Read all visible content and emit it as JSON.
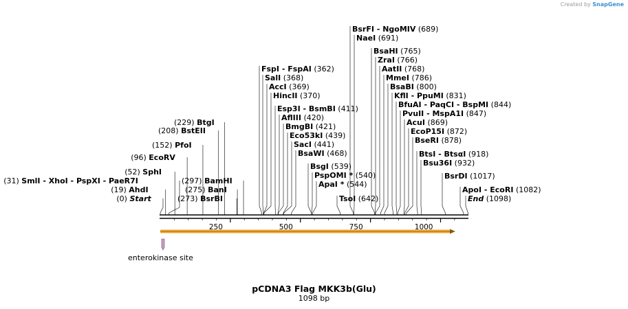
{
  "credit": {
    "prefix": "Created by",
    "brand": "SnapGene"
  },
  "title": "pCDNA3 Flag MKK3b(Glu)",
  "length_label": "1098 bp",
  "feature": {
    "label": "enterokinase site",
    "color": "#c9a0c3"
  },
  "orf_color": "#f0a830",
  "ruler_ticks": [
    "250",
    "500",
    "750",
    "1000"
  ],
  "sites": [
    {
      "id": "start",
      "pos": "(0)",
      "names": [
        "Start"
      ],
      "italic": true
    },
    {
      "id": "ahdi",
      "pos": "(19)",
      "names": [
        "AhdI"
      ]
    },
    {
      "id": "smli",
      "pos": "(31)",
      "names": [
        "SmlI",
        "XhoI",
        "PspXI",
        "PaeR7I"
      ]
    },
    {
      "id": "sphi",
      "pos": "(52)",
      "names": [
        "SphI"
      ]
    },
    {
      "id": "ecorv",
      "pos": "(96)",
      "names": [
        "EcoRV"
      ]
    },
    {
      "id": "pfoi",
      "pos": "(152)",
      "names": [
        "PfoI"
      ]
    },
    {
      "id": "bsteii",
      "pos": "(208)",
      "names": [
        "BstEII"
      ]
    },
    {
      "id": "btgi",
      "pos": "(229)",
      "names": [
        "BtgI"
      ]
    },
    {
      "id": "bsrbi",
      "pos": "(273)",
      "names": [
        "BsrBI"
      ]
    },
    {
      "id": "bani",
      "pos": "(275)",
      "names": [
        "BanI"
      ]
    },
    {
      "id": "bamhi",
      "pos": "(297)",
      "names": [
        "BamHI"
      ]
    },
    {
      "id": "fspi",
      "pos": "(362)",
      "names": [
        "FspI",
        "FspAI"
      ]
    },
    {
      "id": "sali",
      "pos": "(368)",
      "names": [
        "SalI"
      ]
    },
    {
      "id": "acci",
      "pos": "(369)",
      "names": [
        "AccI"
      ]
    },
    {
      "id": "hincii",
      "pos": "(370)",
      "names": [
        "HincII"
      ]
    },
    {
      "id": "esp3i",
      "pos": "(411)",
      "names": [
        "Esp3I",
        "BsmBI"
      ]
    },
    {
      "id": "afliii",
      "pos": "(420)",
      "names": [
        "AflIII"
      ]
    },
    {
      "id": "bmgbi",
      "pos": "(421)",
      "names": [
        "BmgBI"
      ]
    },
    {
      "id": "eco53ki",
      "pos": "(439)",
      "names": [
        "Eco53kI"
      ]
    },
    {
      "id": "saci",
      "pos": "(441)",
      "names": [
        "SacI"
      ]
    },
    {
      "id": "bsawi",
      "pos": "(468)",
      "names": [
        "BsaWI"
      ]
    },
    {
      "id": "bsgi",
      "pos": "(539)",
      "names": [
        "BsgI"
      ]
    },
    {
      "id": "pspomi",
      "pos": "(540)",
      "names": [
        "PspOMI *"
      ]
    },
    {
      "id": "apai",
      "pos": "(544)",
      "names": [
        "ApaI *"
      ]
    },
    {
      "id": "tsoi",
      "pos": "(642)",
      "names": [
        "TsoI"
      ]
    },
    {
      "id": "bsrfi",
      "pos": "(689)",
      "names": [
        "BsrFI",
        "NgoMIV"
      ]
    },
    {
      "id": "naei",
      "pos": "(691)",
      "names": [
        "NaeI"
      ]
    },
    {
      "id": "bsahi",
      "pos": "(765)",
      "names": [
        "BsaHI"
      ]
    },
    {
      "id": "zrai",
      "pos": "(766)",
      "names": [
        "ZraI"
      ]
    },
    {
      "id": "aatii",
      "pos": "(768)",
      "names": [
        "AatII"
      ]
    },
    {
      "id": "mmei",
      "pos": "(786)",
      "names": [
        "MmeI"
      ]
    },
    {
      "id": "bsabi",
      "pos": "(800)",
      "names": [
        "BsaBI"
      ]
    },
    {
      "id": "kfli",
      "pos": "(831)",
      "names": [
        "KflI",
        "PpuMI"
      ]
    },
    {
      "id": "bfuai",
      "pos": "(844)",
      "names": [
        "BfuAI",
        "PaqCI",
        "BspMI"
      ]
    },
    {
      "id": "pvuii",
      "pos": "(847)",
      "names": [
        "PvuII",
        "MspA1I"
      ]
    },
    {
      "id": "acui",
      "pos": "(869)",
      "names": [
        "AcuI"
      ]
    },
    {
      "id": "ecop15i",
      "pos": "(872)",
      "names": [
        "EcoP15I"
      ]
    },
    {
      "id": "bseri",
      "pos": "(878)",
      "names": [
        "BseRI"
      ]
    },
    {
      "id": "btsi",
      "pos": "(918)",
      "names": [
        "BtsI",
        "BtsαI"
      ]
    },
    {
      "id": "bsu36i",
      "pos": "(932)",
      "names": [
        "Bsu36I"
      ]
    },
    {
      "id": "bsrdi",
      "pos": "(1017)",
      "names": [
        "BsrDI"
      ]
    },
    {
      "id": "apoi",
      "pos": "(1082)",
      "names": [
        "ApoI",
        "EcoRI"
      ]
    },
    {
      "id": "end",
      "pos": "(1098)",
      "names": [
        "End"
      ],
      "italic": true
    }
  ]
}
